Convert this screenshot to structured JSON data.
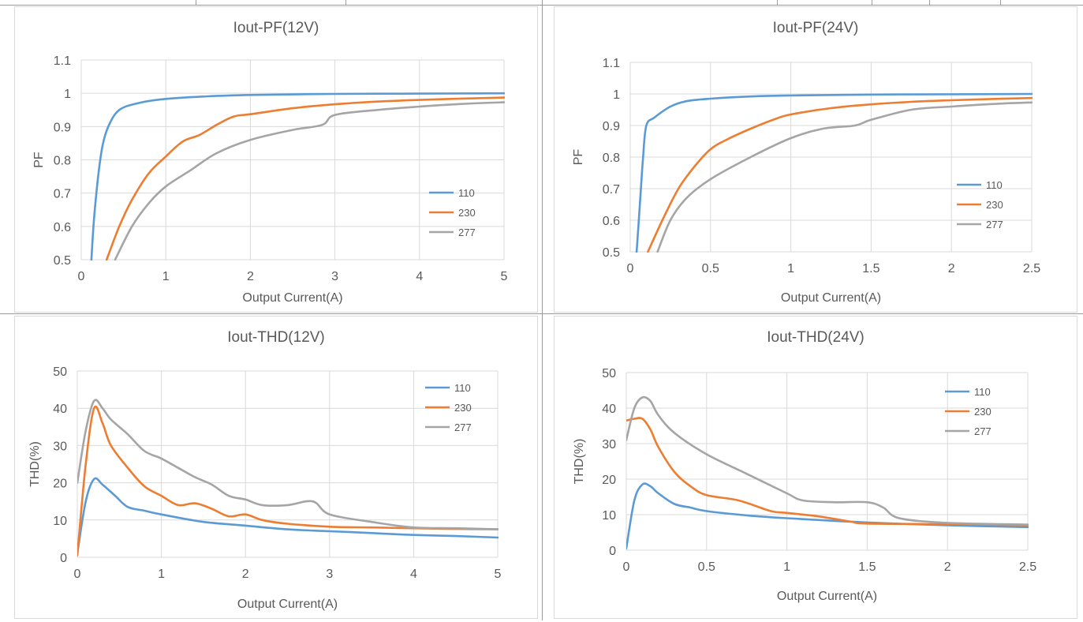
{
  "chart_data": [
    {
      "type": "line",
      "title": "Iout-PF(12V)",
      "xlabel": "Output Current(A)",
      "ylabel": "PF",
      "xlim": [
        0,
        5
      ],
      "ylim": [
        0.5,
        1.1
      ],
      "xticks": [
        "0",
        "1",
        "2",
        "3",
        "4",
        "5"
      ],
      "yticks": [
        "0.5",
        "0.6",
        "0.7",
        "0.8",
        "0.9",
        "1",
        "1.1"
      ],
      "grid": true,
      "legend_position": "bottom-right",
      "series": [
        {
          "name": "110",
          "color": "#5b9bd5",
          "points": [
            [
              0.12,
              0.5
            ],
            [
              0.15,
              0.62
            ],
            [
              0.2,
              0.75
            ],
            [
              0.25,
              0.84
            ],
            [
              0.32,
              0.9
            ],
            [
              0.45,
              0.95
            ],
            [
              0.7,
              0.972
            ],
            [
              1.0,
              0.983
            ],
            [
              1.5,
              0.991
            ],
            [
              2.0,
              0.995
            ],
            [
              3.0,
              0.998
            ],
            [
              4.0,
              0.999
            ],
            [
              5.0,
              1.0
            ]
          ]
        },
        {
          "name": "230",
          "color": "#ed7d31",
          "points": [
            [
              0.3,
              0.5
            ],
            [
              0.45,
              0.6
            ],
            [
              0.6,
              0.68
            ],
            [
              0.8,
              0.76
            ],
            [
              1.0,
              0.81
            ],
            [
              1.2,
              0.855
            ],
            [
              1.4,
              0.875
            ],
            [
              1.6,
              0.905
            ],
            [
              1.8,
              0.93
            ],
            [
              2.0,
              0.937
            ],
            [
              2.5,
              0.955
            ],
            [
              3.0,
              0.967
            ],
            [
              3.5,
              0.975
            ],
            [
              4.0,
              0.98
            ],
            [
              4.5,
              0.984
            ],
            [
              5.0,
              0.987
            ]
          ]
        },
        {
          "name": "277",
          "color": "#a5a5a5",
          "points": [
            [
              0.4,
              0.5
            ],
            [
              0.6,
              0.6
            ],
            [
              0.8,
              0.67
            ],
            [
              1.0,
              0.72
            ],
            [
              1.3,
              0.77
            ],
            [
              1.6,
              0.82
            ],
            [
              2.0,
              0.86
            ],
            [
              2.5,
              0.89
            ],
            [
              2.85,
              0.905
            ],
            [
              3.0,
              0.935
            ],
            [
              3.5,
              0.95
            ],
            [
              4.0,
              0.96
            ],
            [
              4.5,
              0.968
            ],
            [
              5.0,
              0.973
            ]
          ]
        }
      ]
    },
    {
      "type": "line",
      "title": "Iout-PF(24V)",
      "xlabel": "Output Current(A)",
      "ylabel": "PF",
      "xlim": [
        0,
        2.5
      ],
      "ylim": [
        0.5,
        1.1
      ],
      "xticks": [
        "0",
        "0.5",
        "1",
        "1.5",
        "2",
        "2.5"
      ],
      "yticks": [
        "0.5",
        "0.6",
        "0.7",
        "0.8",
        "0.9",
        "1",
        "1.1"
      ],
      "grid": true,
      "legend_position": "bottom-right",
      "series": [
        {
          "name": "110",
          "color": "#5b9bd5",
          "points": [
            [
              0.04,
              0.5
            ],
            [
              0.06,
              0.65
            ],
            [
              0.08,
              0.8
            ],
            [
              0.1,
              0.9
            ],
            [
              0.15,
              0.925
            ],
            [
              0.25,
              0.96
            ],
            [
              0.35,
              0.977
            ],
            [
              0.5,
              0.985
            ],
            [
              0.75,
              0.992
            ],
            [
              1.0,
              0.995
            ],
            [
              1.5,
              0.998
            ],
            [
              2.0,
              0.999
            ],
            [
              2.5,
              1.0
            ]
          ]
        },
        {
          "name": "230",
          "color": "#ed7d31",
          "points": [
            [
              0.11,
              0.5
            ],
            [
              0.2,
              0.6
            ],
            [
              0.3,
              0.7
            ],
            [
              0.4,
              0.77
            ],
            [
              0.5,
              0.825
            ],
            [
              0.6,
              0.855
            ],
            [
              0.75,
              0.89
            ],
            [
              0.9,
              0.92
            ],
            [
              1.0,
              0.935
            ],
            [
              1.25,
              0.955
            ],
            [
              1.5,
              0.967
            ],
            [
              1.75,
              0.975
            ],
            [
              2.0,
              0.98
            ],
            [
              2.25,
              0.984
            ],
            [
              2.5,
              0.987
            ]
          ]
        },
        {
          "name": "277",
          "color": "#a5a5a5",
          "points": [
            [
              0.17,
              0.5
            ],
            [
              0.25,
              0.6
            ],
            [
              0.35,
              0.67
            ],
            [
              0.5,
              0.73
            ],
            [
              0.75,
              0.8
            ],
            [
              1.0,
              0.86
            ],
            [
              1.2,
              0.89
            ],
            [
              1.4,
              0.9
            ],
            [
              1.5,
              0.918
            ],
            [
              1.75,
              0.95
            ],
            [
              2.0,
              0.96
            ],
            [
              2.25,
              0.968
            ],
            [
              2.5,
              0.973
            ]
          ]
        }
      ]
    },
    {
      "type": "line",
      "title": "Iout-THD(12V)",
      "xlabel": "Output Current(A)",
      "ylabel": "THD(%)",
      "xlim": [
        0,
        5
      ],
      "ylim": [
        0,
        50
      ],
      "xticks": [
        "0",
        "1",
        "2",
        "3",
        "4",
        "5"
      ],
      "yticks": [
        "0",
        "10",
        "20",
        "30",
        "40",
        "50"
      ],
      "grid": true,
      "legend_position": "top-right",
      "series": [
        {
          "name": "110",
          "color": "#5b9bd5",
          "points": [
            [
              0.0,
              1.0
            ],
            [
              0.1,
              15.0
            ],
            [
              0.2,
              21.0
            ],
            [
              0.3,
              19.5
            ],
            [
              0.45,
              16.5
            ],
            [
              0.6,
              13.5
            ],
            [
              0.8,
              12.5
            ],
            [
              1.0,
              11.5
            ],
            [
              1.5,
              9.5
            ],
            [
              2.0,
              8.5
            ],
            [
              2.5,
              7.5
            ],
            [
              3.0,
              7.0
            ],
            [
              3.5,
              6.5
            ],
            [
              4.0,
              6.0
            ],
            [
              4.5,
              5.7
            ],
            [
              5.0,
              5.3
            ]
          ]
        },
        {
          "name": "230",
          "color": "#ed7d31",
          "points": [
            [
              0.0,
              0.5
            ],
            [
              0.1,
              25.0
            ],
            [
              0.2,
              40.0
            ],
            [
              0.3,
              36.0
            ],
            [
              0.4,
              30.0
            ],
            [
              0.6,
              24.0
            ],
            [
              0.8,
              19.0
            ],
            [
              1.0,
              16.5
            ],
            [
              1.2,
              14.0
            ],
            [
              1.4,
              14.5
            ],
            [
              1.6,
              13.0
            ],
            [
              1.8,
              11.0
            ],
            [
              2.0,
              11.5
            ],
            [
              2.2,
              10.0
            ],
            [
              2.5,
              9.0
            ],
            [
              3.0,
              8.2
            ],
            [
              3.5,
              8.0
            ],
            [
              4.0,
              7.8
            ],
            [
              4.5,
              7.6
            ],
            [
              5.0,
              7.5
            ]
          ]
        },
        {
          "name": "277",
          "color": "#a5a5a5",
          "points": [
            [
              0.0,
              20.0
            ],
            [
              0.1,
              34.0
            ],
            [
              0.2,
              42.0
            ],
            [
              0.3,
              40.0
            ],
            [
              0.4,
              37.0
            ],
            [
              0.6,
              33.0
            ],
            [
              0.8,
              28.5
            ],
            [
              1.0,
              26.5
            ],
            [
              1.2,
              24.0
            ],
            [
              1.4,
              21.5
            ],
            [
              1.6,
              19.5
            ],
            [
              1.8,
              16.5
            ],
            [
              2.0,
              15.5
            ],
            [
              2.2,
              14.0
            ],
            [
              2.5,
              14.0
            ],
            [
              2.8,
              15.0
            ],
            [
              3.0,
              11.5
            ],
            [
              3.5,
              9.5
            ],
            [
              4.0,
              8.0
            ],
            [
              4.5,
              7.8
            ],
            [
              5.0,
              7.5
            ]
          ]
        }
      ]
    },
    {
      "type": "line",
      "title": "Iout-THD(24V)",
      "xlabel": "Output Current(A)",
      "ylabel": "THD(%)",
      "xlim": [
        0,
        2.5
      ],
      "ylim": [
        0,
        50
      ],
      "xticks": [
        "0",
        "0.5",
        "1",
        "1.5",
        "2",
        "2.5"
      ],
      "yticks": [
        "0",
        "10",
        "20",
        "30",
        "40",
        "50"
      ],
      "grid": true,
      "legend_position": "top-right",
      "series": [
        {
          "name": "110",
          "color": "#5b9bd5",
          "points": [
            [
              0.0,
              0.5
            ],
            [
              0.05,
              14.0
            ],
            [
              0.1,
              18.5
            ],
            [
              0.15,
              18.0
            ],
            [
              0.2,
              16.0
            ],
            [
              0.3,
              13.0
            ],
            [
              0.4,
              12.0
            ],
            [
              0.5,
              11.0
            ],
            [
              0.75,
              9.8
            ],
            [
              1.0,
              9.0
            ],
            [
              1.5,
              7.8
            ],
            [
              2.0,
              7.0
            ],
            [
              2.5,
              6.5
            ]
          ]
        },
        {
          "name": "230",
          "color": "#ed7d31",
          "points": [
            [
              0.0,
              36.5
            ],
            [
              0.05,
              37.0
            ],
            [
              0.1,
              37.0
            ],
            [
              0.15,
              34.0
            ],
            [
              0.2,
              29.0
            ],
            [
              0.3,
              22.0
            ],
            [
              0.4,
              18.0
            ],
            [
              0.5,
              15.5
            ],
            [
              0.7,
              14.0
            ],
            [
              0.9,
              11.0
            ],
            [
              1.0,
              10.5
            ],
            [
              1.2,
              9.5
            ],
            [
              1.4,
              8.0
            ],
            [
              1.5,
              7.5
            ],
            [
              2.0,
              7.3
            ],
            [
              2.5,
              7.0
            ]
          ]
        },
        {
          "name": "277",
          "color": "#a5a5a5",
          "points": [
            [
              0.0,
              31.0
            ],
            [
              0.05,
              40.0
            ],
            [
              0.1,
              43.0
            ],
            [
              0.15,
              42.0
            ],
            [
              0.2,
              38.0
            ],
            [
              0.3,
              33.0
            ],
            [
              0.5,
              27.0
            ],
            [
              0.75,
              21.5
            ],
            [
              1.0,
              16.0
            ],
            [
              1.1,
              14.0
            ],
            [
              1.3,
              13.5
            ],
            [
              1.5,
              13.5
            ],
            [
              1.6,
              12.0
            ],
            [
              1.7,
              9.0
            ],
            [
              2.0,
              7.7
            ],
            [
              2.5,
              7.2
            ]
          ]
        }
      ]
    }
  ]
}
